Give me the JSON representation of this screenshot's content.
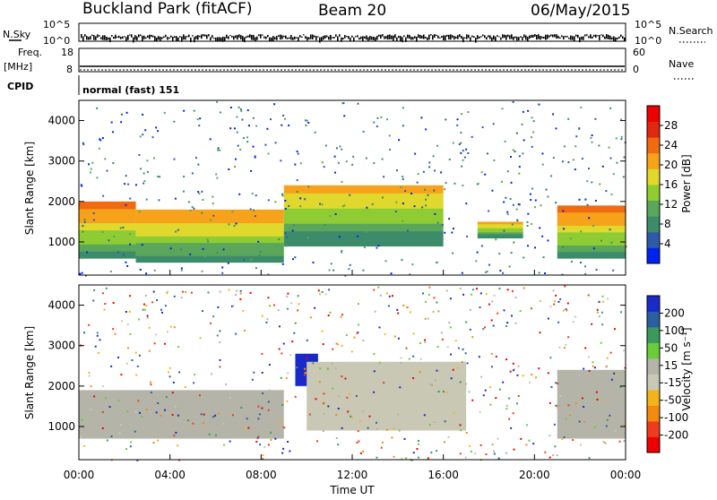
{
  "header": {
    "site": "Buckland Park (fitACF)",
    "beam": "Beam 20",
    "date": "06/May/2015"
  },
  "labels": {
    "nsky": "N.Sky",
    "nsearch": "N.Search",
    "freq": "Freq.",
    "freq_unit": "[MHz]",
    "nave": "Nave",
    "cpid": "CPID",
    "cpid_value": "normal (fast) 151",
    "noise_top": "10^5",
    "noise_bottom": "10^0",
    "freq_top": "18",
    "freq_bottom": "8",
    "nave_top": "60",
    "nave_bottom": "0"
  },
  "colors": {
    "power_scale": [
      "#0022ee",
      "#2f5aa8",
      "#3c8c6c",
      "#5aa65a",
      "#8fcc33",
      "#e0d82c",
      "#f7a21b",
      "#f06a10",
      "#e02810",
      "#ee0000"
    ],
    "velocity_scale": [
      "#ee0000",
      "#ee3b1e",
      "#f28a10",
      "#f2b41e",
      "#c8c8b4",
      "#b4b4a8",
      "#6acc38",
      "#3a9a5c",
      "#2a5fa0",
      "#1a2ac8"
    ]
  },
  "chart_data": [
    {
      "type": "heatmap",
      "panel": "power",
      "ylabel": "Slant Range [km]",
      "yticks": [
        "1000",
        "2000",
        "3000",
        "4000"
      ],
      "ylim": [
        180,
        4500
      ],
      "xlim": [
        0,
        24
      ],
      "colorbar_title": "Power [dB]",
      "colorbar_ticks": [
        "4",
        "8",
        "12",
        "16",
        "20",
        "24",
        "28"
      ],
      "colorbar_range": [
        0,
        32
      ],
      "features": [
        {
          "from_hr": 0,
          "to_hr": 2.5,
          "range_min_km": 600,
          "range_max_km": 2000,
          "peak_db": 26
        },
        {
          "from_hr": 2.5,
          "to_hr": 9,
          "range_min_km": 500,
          "range_max_km": 1800,
          "peak_db": 24
        },
        {
          "from_hr": 9,
          "to_hr": 16,
          "range_min_km": 900,
          "range_max_km": 2400,
          "peak_db": 22
        },
        {
          "from_hr": 17.5,
          "to_hr": 19.5,
          "range_min_km": 1100,
          "range_max_km": 1500,
          "peak_db": 22
        },
        {
          "from_hr": 21,
          "to_hr": 24,
          "range_min_km": 600,
          "range_max_km": 1900,
          "peak_db": 26
        }
      ]
    },
    {
      "type": "heatmap",
      "panel": "velocity",
      "ylabel": "Slant Range [km]",
      "yticks": [
        "1000",
        "2000",
        "3000",
        "4000"
      ],
      "ylim": [
        180,
        4500
      ],
      "xlim": [
        0,
        24
      ],
      "xlabel": "Time UT",
      "xticks": [
        "00:00",
        "04:00",
        "08:00",
        "12:00",
        "16:00",
        "20:00",
        "00:00"
      ],
      "colorbar_title": "Velocity [m s⁻¹]",
      "colorbar_ticks": [
        "-200",
        "-100",
        "-50",
        "-15",
        "15",
        "50",
        "100",
        "200"
      ],
      "colorbar_range": [
        -250,
        250
      ],
      "features": [
        {
          "from_hr": 0,
          "to_hr": 9,
          "range_min_km": 700,
          "range_max_km": 1900,
          "typical_velocity": 0
        },
        {
          "from_hr": 9.5,
          "to_hr": 10.5,
          "range_min_km": 2000,
          "range_max_km": 2800,
          "typical_velocity": 200
        },
        {
          "from_hr": 10,
          "to_hr": 17,
          "range_min_km": 900,
          "range_max_km": 2600,
          "typical_velocity": -50
        },
        {
          "from_hr": 21,
          "to_hr": 24,
          "range_min_km": 700,
          "range_max_km": 2400,
          "typical_velocity": 40
        }
      ]
    }
  ]
}
